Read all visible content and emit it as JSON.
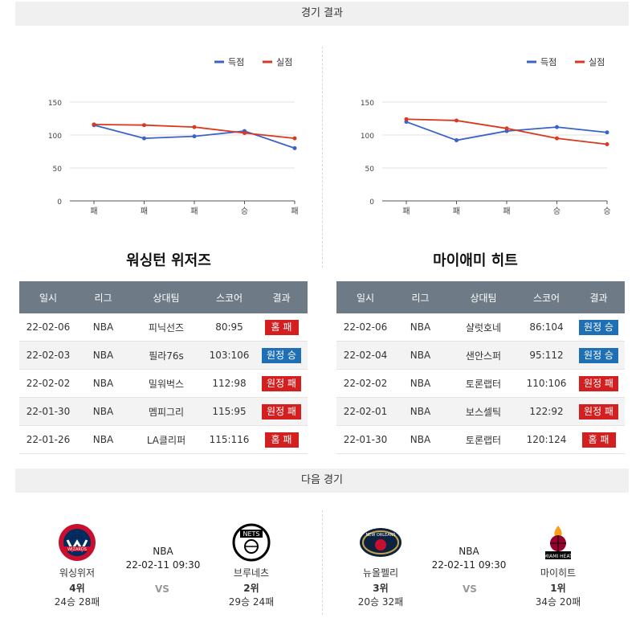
{
  "sections": {
    "results_title": "경기 결과",
    "next_title": "다음 경기"
  },
  "legend": {
    "scored": "득점",
    "conceded": "실점"
  },
  "colors": {
    "scored": "#3a63c9",
    "conceded": "#d9391f",
    "win": "#1e6fb3",
    "loss": "#d31f1f",
    "header": "#6e7a85"
  },
  "table_headers": [
    "일시",
    "리그",
    "상대팀",
    "스코어",
    "결과"
  ],
  "teams": [
    {
      "name": "워싱턴 위저즈",
      "games": [
        {
          "date": "22-02-06",
          "league": "NBA",
          "opponent": "피닉선즈",
          "score": "80:95",
          "result": "홈 패",
          "win": false
        },
        {
          "date": "22-02-03",
          "league": "NBA",
          "opponent": "필라76s",
          "score": "103:106",
          "result": "원정 승",
          "win": true
        },
        {
          "date": "22-02-02",
          "league": "NBA",
          "opponent": "밀워벅스",
          "score": "112:98",
          "result": "원정 패",
          "win": false
        },
        {
          "date": "22-01-30",
          "league": "NBA",
          "opponent": "멤피그리",
          "score": "115:95",
          "result": "원정 패",
          "win": false
        },
        {
          "date": "22-01-26",
          "league": "NBA",
          "opponent": "LA클리퍼",
          "score": "115:116",
          "result": "홈 패",
          "win": false
        }
      ]
    },
    {
      "name": "마이애미 히트",
      "games": [
        {
          "date": "22-02-06",
          "league": "NBA",
          "opponent": "샬럿호네",
          "score": "86:104",
          "result": "원정 승",
          "win": true
        },
        {
          "date": "22-02-04",
          "league": "NBA",
          "opponent": "샌안스퍼",
          "score": "95:112",
          "result": "원정 승",
          "win": true
        },
        {
          "date": "22-02-02",
          "league": "NBA",
          "opponent": "토론랩터",
          "score": "110:106",
          "result": "원정 패",
          "win": false
        },
        {
          "date": "22-02-01",
          "league": "NBA",
          "opponent": "보스셀틱",
          "score": "122:92",
          "result": "원정 패",
          "win": false
        },
        {
          "date": "22-01-30",
          "league": "NBA",
          "opponent": "토론랩터",
          "score": "120:124",
          "result": "홈 패",
          "win": false
        }
      ]
    }
  ],
  "chart_data": [
    {
      "type": "line",
      "categories": [
        "패",
        "패",
        "패",
        "승",
        "패"
      ],
      "ylim": [
        0,
        150
      ],
      "yticks": [
        0,
        50,
        100,
        150
      ],
      "legend_position": "top-right",
      "grid": true,
      "series": [
        {
          "name": "득점",
          "values": [
            115,
            95,
            98,
            106,
            80
          ]
        },
        {
          "name": "실점",
          "values": [
            116,
            115,
            112,
            103,
            95
          ]
        }
      ]
    },
    {
      "type": "line",
      "categories": [
        "패",
        "패",
        "패",
        "승",
        "승"
      ],
      "ylim": [
        0,
        150
      ],
      "yticks": [
        0,
        50,
        100,
        150
      ],
      "legend_position": "top-right",
      "grid": true,
      "series": [
        {
          "name": "득점",
          "values": [
            120,
            92,
            106,
            112,
            104
          ]
        },
        {
          "name": "실점",
          "values": [
            124,
            122,
            110,
            95,
            86
          ]
        }
      ]
    }
  ],
  "next_games": [
    {
      "league": "NBA",
      "datetime": "22-02-11 09:30",
      "vs": "VS",
      "home": {
        "name": "워싱위저",
        "rank": "4위",
        "record": "24승 28패",
        "logo": "wizards-logo",
        "logo_text": "WIZARDS"
      },
      "away": {
        "name": "브루네츠",
        "rank": "2위",
        "record": "29승 24패",
        "logo": "nets-logo",
        "logo_text": "NETS"
      }
    },
    {
      "league": "NBA",
      "datetime": "22-02-11 09:30",
      "vs": "VS",
      "home": {
        "name": "뉴올펠리",
        "rank": "3위",
        "record": "20승 32패",
        "logo": "pelicans-logo",
        "logo_text": "NEW ORLEANS"
      },
      "away": {
        "name": "마이히트",
        "rank": "1위",
        "record": "34승 20패",
        "logo": "heat-logo",
        "logo_text": "MIAMI HEAT"
      }
    }
  ]
}
